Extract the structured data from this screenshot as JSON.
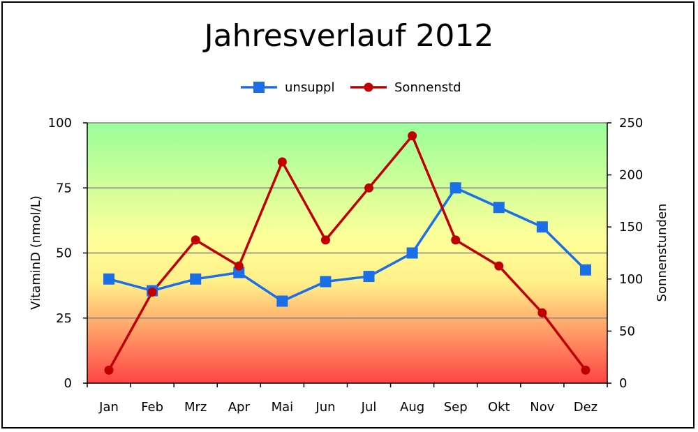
{
  "chart_data": {
    "type": "line",
    "title": "Jahresverlauf 2012",
    "categories": [
      "Jan",
      "Feb",
      "Mrz",
      "Apr",
      "Mai",
      "Jun",
      "Jul",
      "Aug",
      "Sep",
      "Okt",
      "Nov",
      "Dez"
    ],
    "ylabel": "VitaminD (nmol/L)",
    "y2label": "Sonnenstunden",
    "ylim": [
      0,
      100
    ],
    "y2lim": [
      0,
      250
    ],
    "yticks": [
      "0",
      "25",
      "50",
      "75",
      "100"
    ],
    "y2ticks": [
      "0",
      "50",
      "100",
      "150",
      "200",
      "250"
    ],
    "grid": true,
    "legend_position": "top",
    "background_gradient": [
      "#99ff99",
      "#ffff99",
      "#ff5555"
    ],
    "series": [
      {
        "name": "unsuppl",
        "axis": "left",
        "marker": "square",
        "color": "#1a6fe8",
        "values": [
          40,
          35.5,
          40,
          42.5,
          31.5,
          39,
          41,
          50,
          75,
          67.5,
          60,
          43.5
        ]
      },
      {
        "name": "Sonnenstd",
        "axis": "right",
        "marker": "circle",
        "color": "#c00000",
        "values": [
          12.5,
          87.5,
          137.5,
          112.5,
          212.5,
          137.5,
          187.5,
          237.5,
          137.5,
          112.5,
          67.5,
          12.5
        ]
      }
    ]
  }
}
